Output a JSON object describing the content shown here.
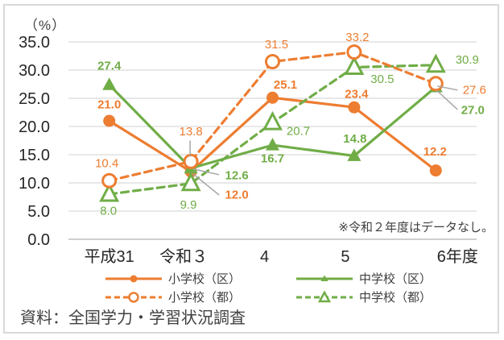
{
  "chart_data": {
    "type": "line",
    "y_unit": "（%）",
    "x_categories": [
      "平成31",
      "令和３",
      "4",
      "5",
      "6年度"
    ],
    "ylim": [
      0,
      35
    ],
    "ytick_interval": 5,
    "ytick_labels": [
      "35.0",
      "30.0",
      "25.0",
      "20.0",
      "15.0",
      "10.0",
      "5.0",
      "0.0"
    ],
    "grid": true,
    "legend_position": "bottom",
    "note": "※令和２年度はデータなし。",
    "source": "資料：全国学力・学習状況調査",
    "series": [
      {
        "name": "小学校（区）",
        "color": "#ED7D31",
        "dashed": false,
        "marker": "circle",
        "filled": true,
        "bold_labels": true,
        "values": [
          21.0,
          12.0,
          25.1,
          23.4,
          12.2
        ],
        "label_offsets": [
          [
            0,
            -21
          ],
          [
            57,
            28
          ],
          [
            16,
            -17
          ],
          [
            3,
            -17
          ],
          [
            -1,
            -24
          ]
        ],
        "leaders": [
          null,
          [
            [
              3,
              3
            ],
            [
              35,
              29
            ]
          ],
          null,
          null,
          null
        ]
      },
      {
        "name": "中学校（区）",
        "color": "#70AD47",
        "dashed": false,
        "marker": "triangle",
        "filled": true,
        "bold_labels": true,
        "values": [
          27.4,
          12.6,
          16.7,
          14.8,
          27.0
        ],
        "label_offsets": [
          [
            0,
            -24
          ],
          [
            57,
            8
          ],
          [
            0,
            16
          ],
          [
            1,
            -22
          ],
          [
            46,
            28
          ]
        ],
        "leaders": [
          null,
          [
            [
              3,
              1
            ],
            [
              35,
              8
            ]
          ],
          null,
          null,
          [
            [
              1,
              4
            ],
            [
              27,
              28
            ]
          ]
        ]
      },
      {
        "name": "小学校（都）",
        "color": "#ED7D31",
        "dashed": true,
        "marker": "circle",
        "filled": false,
        "bold_labels": false,
        "values": [
          10.4,
          13.8,
          31.5,
          33.2,
          27.6
        ],
        "label_offsets": [
          [
            -3,
            -22
          ],
          [
            0,
            -38
          ],
          [
            5,
            -22
          ],
          [
            4,
            -19
          ],
          [
            48,
            7
          ]
        ],
        "leaders": [
          null,
          [
            [
              -1,
              -26
            ],
            [
              -1,
              -6
            ]
          ],
          null,
          null,
          [
            [
              2,
              3
            ],
            [
              27,
              8
            ]
          ]
        ]
      },
      {
        "name": "中学校（都）",
        "color": "#70AD47",
        "dashed": true,
        "marker": "triangle",
        "filled": false,
        "bold_labels": false,
        "values": [
          8.0,
          9.9,
          20.7,
          30.5,
          30.9
        ],
        "label_offsets": [
          [
            -1,
            20
          ],
          [
            -3,
            26
          ],
          [
            32,
            10
          ],
          [
            35,
            14
          ],
          [
            39,
            -7
          ]
        ],
        "leaders": [
          null,
          null,
          null,
          null,
          null
        ]
      }
    ],
    "colors": {
      "grid": "#D9D9D9",
      "axis": "#BFBFBF",
      "axis_text": "#262626",
      "leader": "#A6A6A6",
      "frame_border": "#D9D9D9"
    }
  }
}
